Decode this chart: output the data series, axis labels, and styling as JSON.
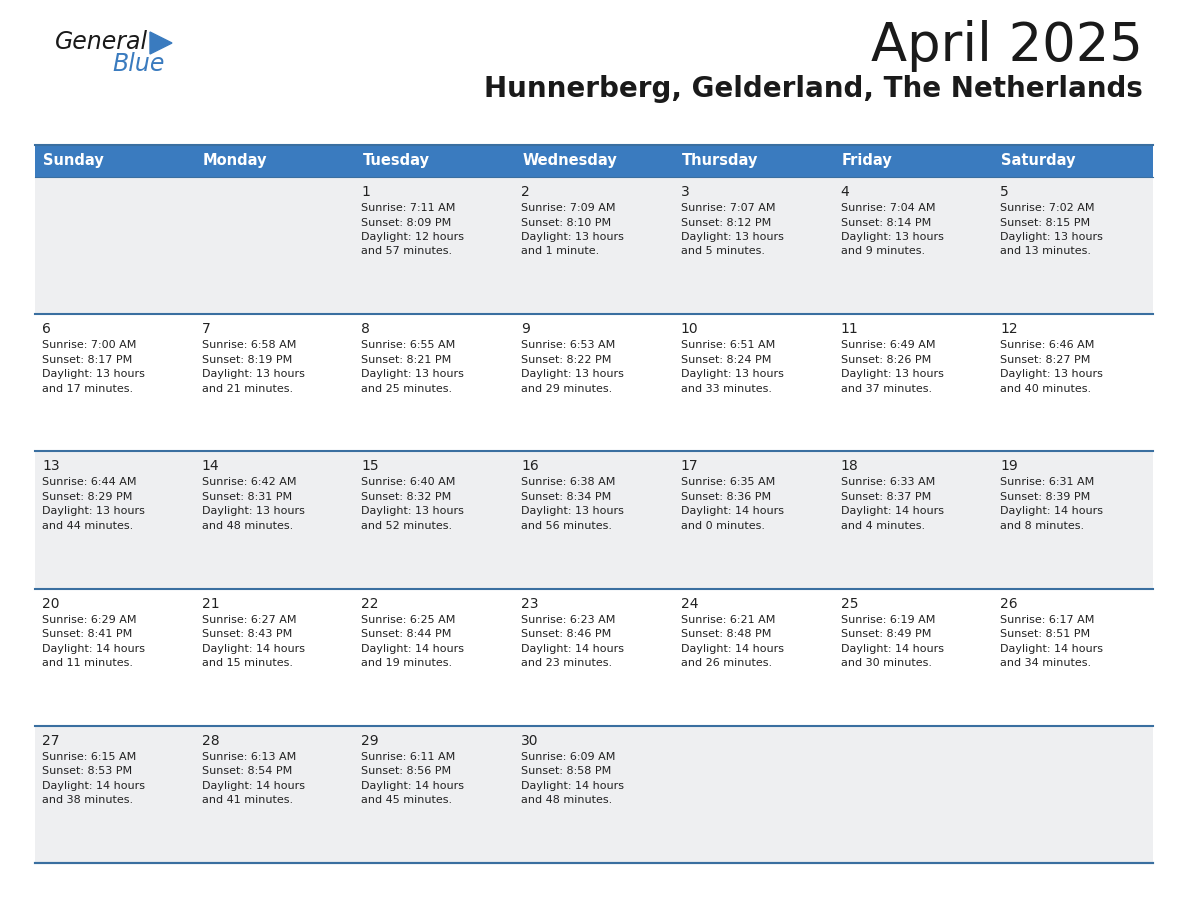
{
  "title": "April 2025",
  "subtitle": "Hunnerberg, Gelderland, The Netherlands",
  "header_color": "#3a7bbf",
  "header_text_color": "#ffffff",
  "cell_bg_light": "#eeeff1",
  "cell_bg_white": "#ffffff",
  "border_color": "#3a6fa0",
  "text_color": "#222222",
  "day_names": [
    "Sunday",
    "Monday",
    "Tuesday",
    "Wednesday",
    "Thursday",
    "Friday",
    "Saturday"
  ],
  "days": [
    {
      "date": 1,
      "col": 2,
      "row": 0,
      "sunrise": "7:11 AM",
      "sunset": "8:09 PM",
      "daylight": "12 hours and 57 minutes."
    },
    {
      "date": 2,
      "col": 3,
      "row": 0,
      "sunrise": "7:09 AM",
      "sunset": "8:10 PM",
      "daylight": "13 hours and 1 minute."
    },
    {
      "date": 3,
      "col": 4,
      "row": 0,
      "sunrise": "7:07 AM",
      "sunset": "8:12 PM",
      "daylight": "13 hours and 5 minutes."
    },
    {
      "date": 4,
      "col": 5,
      "row": 0,
      "sunrise": "7:04 AM",
      "sunset": "8:14 PM",
      "daylight": "13 hours and 9 minutes."
    },
    {
      "date": 5,
      "col": 6,
      "row": 0,
      "sunrise": "7:02 AM",
      "sunset": "8:15 PM",
      "daylight": "13 hours and 13 minutes."
    },
    {
      "date": 6,
      "col": 0,
      "row": 1,
      "sunrise": "7:00 AM",
      "sunset": "8:17 PM",
      "daylight": "13 hours and 17 minutes."
    },
    {
      "date": 7,
      "col": 1,
      "row": 1,
      "sunrise": "6:58 AM",
      "sunset": "8:19 PM",
      "daylight": "13 hours and 21 minutes."
    },
    {
      "date": 8,
      "col": 2,
      "row": 1,
      "sunrise": "6:55 AM",
      "sunset": "8:21 PM",
      "daylight": "13 hours and 25 minutes."
    },
    {
      "date": 9,
      "col": 3,
      "row": 1,
      "sunrise": "6:53 AM",
      "sunset": "8:22 PM",
      "daylight": "13 hours and 29 minutes."
    },
    {
      "date": 10,
      "col": 4,
      "row": 1,
      "sunrise": "6:51 AM",
      "sunset": "8:24 PM",
      "daylight": "13 hours and 33 minutes."
    },
    {
      "date": 11,
      "col": 5,
      "row": 1,
      "sunrise": "6:49 AM",
      "sunset": "8:26 PM",
      "daylight": "13 hours and 37 minutes."
    },
    {
      "date": 12,
      "col": 6,
      "row": 1,
      "sunrise": "6:46 AM",
      "sunset": "8:27 PM",
      "daylight": "13 hours and 40 minutes."
    },
    {
      "date": 13,
      "col": 0,
      "row": 2,
      "sunrise": "6:44 AM",
      "sunset": "8:29 PM",
      "daylight": "13 hours and 44 minutes."
    },
    {
      "date": 14,
      "col": 1,
      "row": 2,
      "sunrise": "6:42 AM",
      "sunset": "8:31 PM",
      "daylight": "13 hours and 48 minutes."
    },
    {
      "date": 15,
      "col": 2,
      "row": 2,
      "sunrise": "6:40 AM",
      "sunset": "8:32 PM",
      "daylight": "13 hours and 52 minutes."
    },
    {
      "date": 16,
      "col": 3,
      "row": 2,
      "sunrise": "6:38 AM",
      "sunset": "8:34 PM",
      "daylight": "13 hours and 56 minutes."
    },
    {
      "date": 17,
      "col": 4,
      "row": 2,
      "sunrise": "6:35 AM",
      "sunset": "8:36 PM",
      "daylight": "14 hours and 0 minutes."
    },
    {
      "date": 18,
      "col": 5,
      "row": 2,
      "sunrise": "6:33 AM",
      "sunset": "8:37 PM",
      "daylight": "14 hours and 4 minutes."
    },
    {
      "date": 19,
      "col": 6,
      "row": 2,
      "sunrise": "6:31 AM",
      "sunset": "8:39 PM",
      "daylight": "14 hours and 8 minutes."
    },
    {
      "date": 20,
      "col": 0,
      "row": 3,
      "sunrise": "6:29 AM",
      "sunset": "8:41 PM",
      "daylight": "14 hours and 11 minutes."
    },
    {
      "date": 21,
      "col": 1,
      "row": 3,
      "sunrise": "6:27 AM",
      "sunset": "8:43 PM",
      "daylight": "14 hours and 15 minutes."
    },
    {
      "date": 22,
      "col": 2,
      "row": 3,
      "sunrise": "6:25 AM",
      "sunset": "8:44 PM",
      "daylight": "14 hours and 19 minutes."
    },
    {
      "date": 23,
      "col": 3,
      "row": 3,
      "sunrise": "6:23 AM",
      "sunset": "8:46 PM",
      "daylight": "14 hours and 23 minutes."
    },
    {
      "date": 24,
      "col": 4,
      "row": 3,
      "sunrise": "6:21 AM",
      "sunset": "8:48 PM",
      "daylight": "14 hours and 26 minutes."
    },
    {
      "date": 25,
      "col": 5,
      "row": 3,
      "sunrise": "6:19 AM",
      "sunset": "8:49 PM",
      "daylight": "14 hours and 30 minutes."
    },
    {
      "date": 26,
      "col": 6,
      "row": 3,
      "sunrise": "6:17 AM",
      "sunset": "8:51 PM",
      "daylight": "14 hours and 34 minutes."
    },
    {
      "date": 27,
      "col": 0,
      "row": 4,
      "sunrise": "6:15 AM",
      "sunset": "8:53 PM",
      "daylight": "14 hours and 38 minutes."
    },
    {
      "date": 28,
      "col": 1,
      "row": 4,
      "sunrise": "6:13 AM",
      "sunset": "8:54 PM",
      "daylight": "14 hours and 41 minutes."
    },
    {
      "date": 29,
      "col": 2,
      "row": 4,
      "sunrise": "6:11 AM",
      "sunset": "8:56 PM",
      "daylight": "14 hours and 45 minutes."
    },
    {
      "date": 30,
      "col": 3,
      "row": 4,
      "sunrise": "6:09 AM",
      "sunset": "8:58 PM",
      "daylight": "14 hours and 48 minutes."
    }
  ],
  "row_bg": [
    "light",
    "white",
    "light",
    "white",
    "light"
  ],
  "figsize": [
    11.88,
    9.18
  ],
  "dpi": 100
}
